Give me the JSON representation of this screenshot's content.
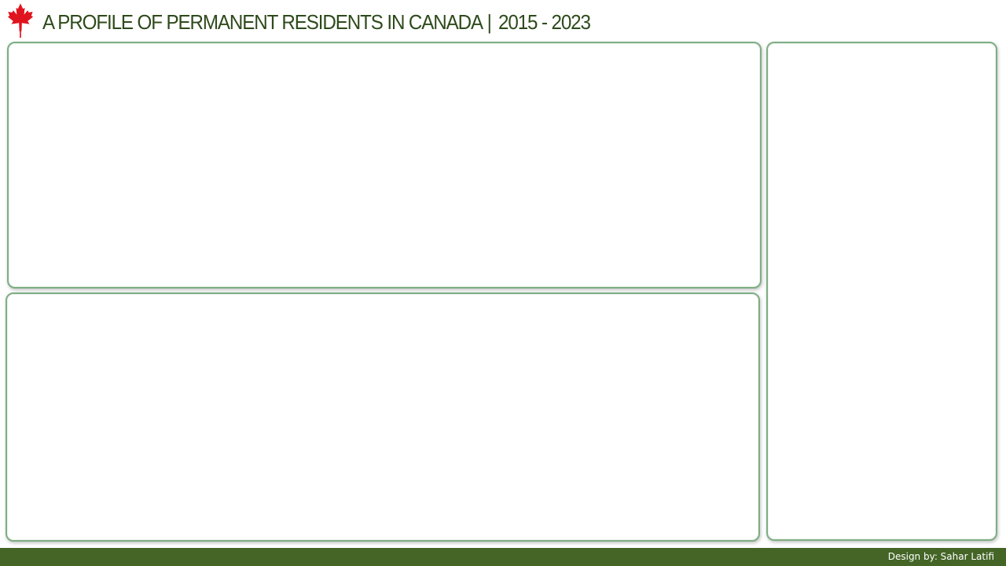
{
  "header": {
    "title": "A PROFILE OF PERMANENT RESIDENTS IN CANADA",
    "separator": "|",
    "years": "2015 - 2023",
    "logo_icon": "maple-leaf-icon",
    "logo_color": "#e0141e",
    "title_color": "#2e4a1b"
  },
  "panels": [
    {
      "name": "top-left-panel"
    },
    {
      "name": "bottom-left-panel"
    },
    {
      "name": "right-side-panel"
    }
  ],
  "footer": {
    "credit": "Design by: Sahar Latifi",
    "background_color": "#446526"
  },
  "colors": {
    "panel_border": "#7fae84",
    "background": "#ffffff"
  }
}
